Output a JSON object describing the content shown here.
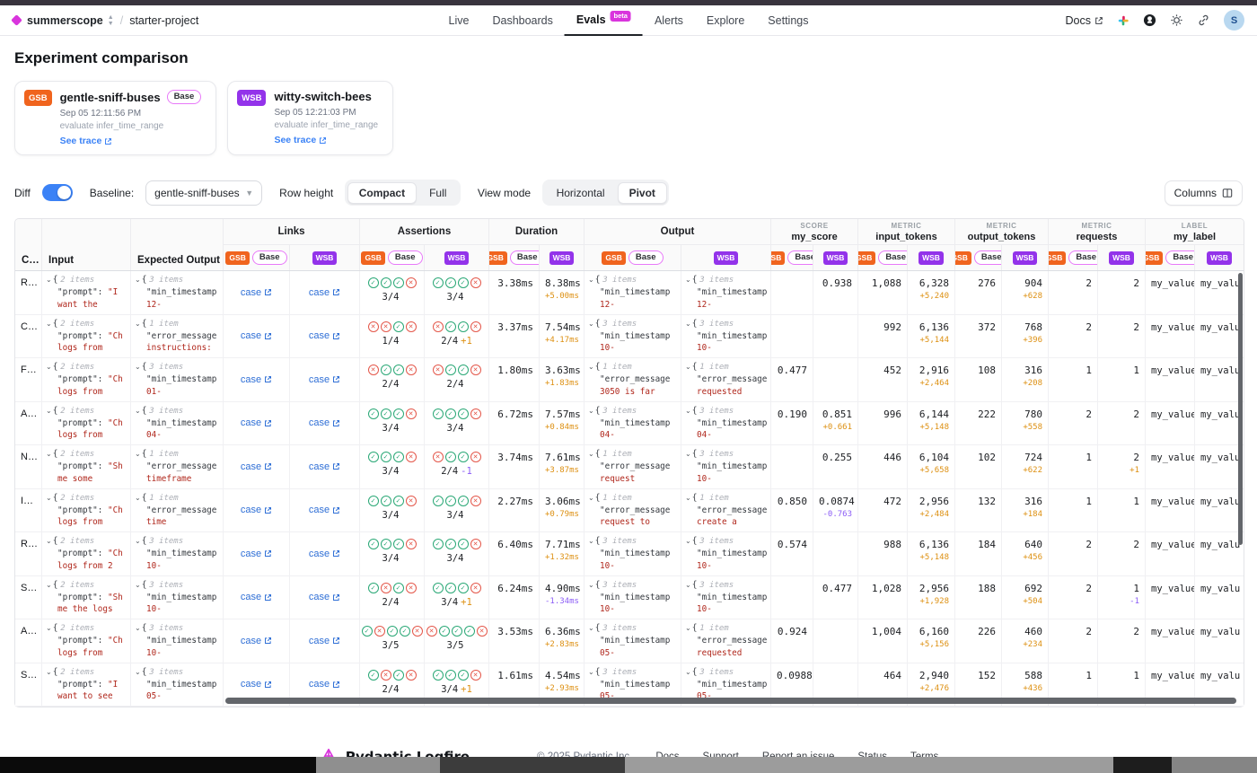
{
  "header": {
    "org": "summerscope",
    "project": "starter-project",
    "tabs": [
      {
        "label": "Live"
      },
      {
        "label": "Dashboards"
      },
      {
        "label": "Evals",
        "badge": "beta"
      },
      {
        "label": "Alerts"
      },
      {
        "label": "Explore"
      },
      {
        "label": "Settings"
      }
    ],
    "docs_label": "Docs",
    "avatar_initial": "S"
  },
  "page": {
    "title": "Experiment comparison"
  },
  "experiments": [
    {
      "abbr": "GSB",
      "name": "gentle-sniff-buses",
      "base_label": "Base",
      "timestamp": "Sep 05 12:11:56 PM",
      "task": "evaluate infer_time_range",
      "trace_label": "See trace"
    },
    {
      "abbr": "WSB",
      "name": "witty-switch-bees",
      "timestamp": "Sep 05 12:21:03 PM",
      "task": "evaluate infer_time_range",
      "trace_label": "See trace"
    }
  ],
  "controls": {
    "diff_label": "Diff",
    "baseline_label": "Baseline:",
    "baseline_value": "gentle-sniff-buses",
    "row_height_label": "Row height",
    "row_height_options": [
      "Compact",
      "Full"
    ],
    "row_height_selected": "Compact",
    "view_mode_label": "View mode",
    "view_mode_options": [
      "Horizontal",
      "Pivot"
    ],
    "view_mode_selected": "Pivot",
    "columns_label": "Columns"
  },
  "table": {
    "badges": {
      "gsb": "GSB",
      "wsb": "WSB",
      "base": "Base"
    },
    "headers": {
      "case": "C…",
      "input": "Input",
      "expected": "Expected Output",
      "links": "Links",
      "assertions": "Assertions",
      "duration": "Duration",
      "output": "Output",
      "score_kind": "SCORE",
      "score_name": "my_score",
      "metric_kind": "METRIC",
      "input_tokens": "input_tokens",
      "output_tokens": "output_tokens",
      "requests": "requests",
      "label_kind": "LABEL",
      "label_name": "my_label"
    },
    "link_label": "case",
    "rows": [
      {
        "c": "R…",
        "in": {
          "s": "2 items",
          "k": "\"prompt\":",
          "v1": "\"I",
          "v2": "want the"
        },
        "ex": {
          "s": "3 items",
          "k": "\"min_timestamp",
          "v2": "12-"
        },
        "ag": {
          "icons": [
            "c",
            "c",
            "c",
            "x"
          ],
          "ratio": "3/4",
          "diff": "",
          "dc": ""
        },
        "aw": {
          "icons": [
            "c",
            "c",
            "c",
            "x"
          ],
          "ratio": "3/4",
          "diff": "",
          "dc": ""
        },
        "du": {
          "g": "3.38ms",
          "w": "8.38ms",
          "d": "+5.00ms",
          "dc": "pos"
        },
        "og": {
          "s": "3 items",
          "k": "\"min_timestamp",
          "v2": "12-"
        },
        "ow": {
          "s": "3 items",
          "k": "\"min_timestamp",
          "v2": "12-"
        },
        "sc": {
          "g": "",
          "w": "0.938",
          "d": "",
          "dc": ""
        },
        "it": {
          "g": "1,088",
          "w": "6,328",
          "d": "+5,240",
          "dc": "pos"
        },
        "ot": {
          "g": "276",
          "w": "904",
          "d": "+628",
          "dc": "pos"
        },
        "rq": {
          "g": "2",
          "w": "2",
          "d": "",
          "dc": ""
        },
        "lb": {
          "g": "my_value_",
          "w": "my_valu"
        }
      },
      {
        "c": "C…",
        "in": {
          "s": "2 items",
          "k": "\"prompt\":",
          "v1": "\"Ch",
          "v2": "logs from"
        },
        "ex": {
          "s": "1 item",
          "k": "\"error_message",
          "v2": "instructions:"
        },
        "ag": {
          "icons": [
            "x",
            "x",
            "c",
            "x"
          ],
          "ratio": "1/4",
          "diff": "",
          "dc": ""
        },
        "aw": {
          "icons": [
            "x",
            "c",
            "c",
            "x"
          ],
          "ratio": "2/4",
          "diff": "+1",
          "dc": "pos"
        },
        "du": {
          "g": "3.37ms",
          "w": "7.54ms",
          "d": "+4.17ms",
          "dc": "pos"
        },
        "og": {
          "s": "3 items",
          "k": "\"min_timestamp",
          "v2": "10-"
        },
        "ow": {
          "s": "3 items",
          "k": "\"min_timestamp",
          "v2": "10-"
        },
        "sc": {
          "g": "",
          "w": "",
          "d": "",
          "dc": ""
        },
        "it": {
          "g": "992",
          "w": "6,136",
          "d": "+5,144",
          "dc": "pos"
        },
        "ot": {
          "g": "372",
          "w": "768",
          "d": "+396",
          "dc": "pos"
        },
        "rq": {
          "g": "2",
          "w": "2",
          "d": "",
          "dc": ""
        },
        "lb": {
          "g": "my_value_",
          "w": "my_valu"
        }
      },
      {
        "c": "F…",
        "in": {
          "s": "2 items",
          "k": "\"prompt\":",
          "v1": "\"Ch",
          "v2": "logs from"
        },
        "ex": {
          "s": "3 items",
          "k": "\"min_timestamp",
          "v2": "01-"
        },
        "ag": {
          "icons": [
            "x",
            "c",
            "c",
            "x"
          ],
          "ratio": "2/4",
          "diff": "",
          "dc": ""
        },
        "aw": {
          "icons": [
            "x",
            "c",
            "c",
            "x"
          ],
          "ratio": "2/4",
          "diff": "",
          "dc": ""
        },
        "du": {
          "g": "1.80ms",
          "w": "3.63ms",
          "d": "+1.83ms",
          "dc": "pos"
        },
        "og": {
          "s": "1 item",
          "k": "\"error_message",
          "v2": "3050 is far"
        },
        "ow": {
          "s": "1 item",
          "k": "\"error_message",
          "v2": "requested"
        },
        "sc": {
          "g": "0.477",
          "w": "",
          "d": "",
          "dc": ""
        },
        "it": {
          "g": "452",
          "w": "2,916",
          "d": "+2,464",
          "dc": "pos"
        },
        "ot": {
          "g": "108",
          "w": "316",
          "d": "+208",
          "dc": "pos"
        },
        "rq": {
          "g": "1",
          "w": "1",
          "d": "",
          "dc": ""
        },
        "lb": {
          "g": "my_value_",
          "w": "my_valu"
        }
      },
      {
        "c": "A…",
        "in": {
          "s": "2 items",
          "k": "\"prompt\":",
          "v1": "\"Ch",
          "v2": "logs from"
        },
        "ex": {
          "s": "3 items",
          "k": "\"min_timestamp",
          "v2": "04-"
        },
        "ag": {
          "icons": [
            "c",
            "c",
            "c",
            "x"
          ],
          "ratio": "3/4",
          "diff": "",
          "dc": ""
        },
        "aw": {
          "icons": [
            "c",
            "c",
            "c",
            "x"
          ],
          "ratio": "3/4",
          "diff": "",
          "dc": ""
        },
        "du": {
          "g": "6.72ms",
          "w": "7.57ms",
          "d": "+0.84ms",
          "dc": "pos"
        },
        "og": {
          "s": "3 items",
          "k": "\"min_timestamp",
          "v2": "04-"
        },
        "ow": {
          "s": "3 items",
          "k": "\"min_timestamp",
          "v2": "04-"
        },
        "sc": {
          "g": "0.190",
          "w": "0.851",
          "d": "+0.661",
          "dc": "pos"
        },
        "it": {
          "g": "996",
          "w": "6,144",
          "d": "+5,148",
          "dc": "pos"
        },
        "ot": {
          "g": "222",
          "w": "780",
          "d": "+558",
          "dc": "pos"
        },
        "rq": {
          "g": "2",
          "w": "2",
          "d": "",
          "dc": ""
        },
        "lb": {
          "g": "my_value_",
          "w": "my_valu"
        }
      },
      {
        "c": "N…",
        "in": {
          "s": "2 items",
          "k": "\"prompt\":",
          "v1": "\"Sh",
          "v2": "me some"
        },
        "ex": {
          "s": "1 item",
          "k": "\"error_message",
          "v2": "timeframe"
        },
        "ag": {
          "icons": [
            "c",
            "c",
            "c",
            "x"
          ],
          "ratio": "3/4",
          "diff": "",
          "dc": ""
        },
        "aw": {
          "icons": [
            "x",
            "c",
            "c",
            "x"
          ],
          "ratio": "2/4",
          "diff": "-1",
          "dc": "neg"
        },
        "du": {
          "g": "3.74ms",
          "w": "7.61ms",
          "d": "+3.87ms",
          "dc": "pos"
        },
        "og": {
          "s": "1 item",
          "k": "\"error_message",
          "v2": "request"
        },
        "ow": {
          "s": "3 items",
          "k": "\"min_timestamp",
          "v2": "10-"
        },
        "sc": {
          "g": "",
          "w": "0.255",
          "d": "",
          "dc": ""
        },
        "it": {
          "g": "446",
          "w": "6,104",
          "d": "+5,658",
          "dc": "pos"
        },
        "ot": {
          "g": "102",
          "w": "724",
          "d": "+622",
          "dc": "pos"
        },
        "rq": {
          "g": "1",
          "w": "2",
          "d": "+1",
          "dc": "pos"
        },
        "lb": {
          "g": "my_value_",
          "w": "my_valu"
        }
      },
      {
        "c": "I…",
        "in": {
          "s": "2 items",
          "k": "\"prompt\":",
          "v1": "\"Ch",
          "v2": "logs from"
        },
        "ex": {
          "s": "1 item",
          "k": "\"error_message",
          "v2": "time"
        },
        "ag": {
          "icons": [
            "c",
            "c",
            "c",
            "x"
          ],
          "ratio": "3/4",
          "diff": "",
          "dc": ""
        },
        "aw": {
          "icons": [
            "c",
            "c",
            "c",
            "x"
          ],
          "ratio": "3/4",
          "diff": "",
          "dc": ""
        },
        "du": {
          "g": "2.27ms",
          "w": "3.06ms",
          "d": "+0.79ms",
          "dc": "pos"
        },
        "og": {
          "s": "1 item",
          "k": "\"error_message",
          "v2": "request to"
        },
        "ow": {
          "s": "1 item",
          "k": "\"error_message",
          "v2": "create a"
        },
        "sc": {
          "g": "0.850",
          "w": "0.0874",
          "d": "-0.763",
          "dc": "neg"
        },
        "it": {
          "g": "472",
          "w": "2,956",
          "d": "+2,484",
          "dc": "pos"
        },
        "ot": {
          "g": "132",
          "w": "316",
          "d": "+184",
          "dc": "pos"
        },
        "rq": {
          "g": "1",
          "w": "1",
          "d": "",
          "dc": ""
        },
        "lb": {
          "g": "my_value_",
          "w": "my_valu"
        }
      },
      {
        "c": "R…",
        "in": {
          "s": "2 items",
          "k": "\"prompt\":",
          "v1": "\"Ch",
          "v2": "logs from 2"
        },
        "ex": {
          "s": "3 items",
          "k": "\"min_timestamp",
          "v2": "10-"
        },
        "ag": {
          "icons": [
            "c",
            "c",
            "c",
            "x"
          ],
          "ratio": "3/4",
          "diff": "",
          "dc": ""
        },
        "aw": {
          "icons": [
            "c",
            "c",
            "c",
            "x"
          ],
          "ratio": "3/4",
          "diff": "",
          "dc": ""
        },
        "du": {
          "g": "6.40ms",
          "w": "7.71ms",
          "d": "+1.32ms",
          "dc": "pos"
        },
        "og": {
          "s": "3 items",
          "k": "\"min_timestamp",
          "v2": "10-"
        },
        "ow": {
          "s": "3 items",
          "k": "\"min_timestamp",
          "v2": "10-"
        },
        "sc": {
          "g": "0.574",
          "w": "",
          "d": "",
          "dc": ""
        },
        "it": {
          "g": "988",
          "w": "6,136",
          "d": "+5,148",
          "dc": "pos"
        },
        "ot": {
          "g": "184",
          "w": "640",
          "d": "+456",
          "dc": "pos"
        },
        "rq": {
          "g": "2",
          "w": "2",
          "d": "",
          "dc": ""
        },
        "lb": {
          "g": "my_value_",
          "w": "my_valu"
        }
      },
      {
        "c": "S…",
        "in": {
          "s": "2 items",
          "k": "\"prompt\":",
          "v1": "\"Sh",
          "v2": "me the logs"
        },
        "ex": {
          "s": "3 items",
          "k": "\"min_timestamp",
          "v2": "10-"
        },
        "ag": {
          "icons": [
            "c",
            "x",
            "c",
            "x"
          ],
          "ratio": "2/4",
          "diff": "",
          "dc": ""
        },
        "aw": {
          "icons": [
            "c",
            "c",
            "c",
            "x"
          ],
          "ratio": "3/4",
          "diff": "+1",
          "dc": "pos"
        },
        "du": {
          "g": "6.24ms",
          "w": "4.90ms",
          "d": "-1.34ms",
          "dc": "neg"
        },
        "og": {
          "s": "3 items",
          "k": "\"min_timestamp",
          "v2": "10-"
        },
        "ow": {
          "s": "3 items",
          "k": "\"min_timestamp",
          "v2": "10-"
        },
        "sc": {
          "g": "",
          "w": "0.477",
          "d": "",
          "dc": ""
        },
        "it": {
          "g": "1,028",
          "w": "2,956",
          "d": "+1,928",
          "dc": "pos"
        },
        "ot": {
          "g": "188",
          "w": "692",
          "d": "+504",
          "dc": "pos"
        },
        "rq": {
          "g": "2",
          "w": "1",
          "d": "-1",
          "dc": "neg"
        },
        "lb": {
          "g": "my_value_",
          "w": "my_valu"
        }
      },
      {
        "c": "A…",
        "in": {
          "s": "2 items",
          "k": "\"prompt\":",
          "v1": "\"Ch",
          "v2": "logs from"
        },
        "ex": {
          "s": "3 items",
          "k": "\"min_timestamp",
          "v2": "10-"
        },
        "ag": {
          "icons": [
            "c",
            "x",
            "c",
            "c",
            "x"
          ],
          "ratio": "3/5",
          "diff": "",
          "dc": ""
        },
        "aw": {
          "icons": [
            "x",
            "c",
            "c",
            "c",
            "x"
          ],
          "ratio": "3/5",
          "diff": "",
          "dc": ""
        },
        "du": {
          "g": "3.53ms",
          "w": "6.36ms",
          "d": "+2.83ms",
          "dc": "pos"
        },
        "og": {
          "s": "3 items",
          "k": "\"min_timestamp",
          "v2": "05-"
        },
        "ow": {
          "s": "1 item",
          "k": "\"error_message",
          "v2": "requested"
        },
        "sc": {
          "g": "0.924",
          "w": "",
          "d": "",
          "dc": ""
        },
        "it": {
          "g": "1,004",
          "w": "6,160",
          "d": "+5,156",
          "dc": "pos"
        },
        "ot": {
          "g": "226",
          "w": "460",
          "d": "+234",
          "dc": "pos"
        },
        "rq": {
          "g": "2",
          "w": "2",
          "d": "",
          "dc": ""
        },
        "lb": {
          "g": "my_value_",
          "w": "my_valu"
        }
      },
      {
        "c": "S…",
        "in": {
          "s": "2 items",
          "k": "\"prompt\":",
          "v1": "\"I",
          "v2": "want to see"
        },
        "ex": {
          "s": "3 items",
          "k": "\"min_timestamp",
          "v2": "05-"
        },
        "ag": {
          "icons": [
            "c",
            "x",
            "c",
            "x"
          ],
          "ratio": "2/4",
          "diff": "",
          "dc": ""
        },
        "aw": {
          "icons": [
            "c",
            "c",
            "c",
            "x"
          ],
          "ratio": "3/4",
          "diff": "+1",
          "dc": "pos"
        },
        "du": {
          "g": "1.61ms",
          "w": "4.54ms",
          "d": "+2.93ms",
          "dc": "pos"
        },
        "og": {
          "s": "3 items",
          "k": "\"min_timestamp",
          "v2": "05-"
        },
        "ow": {
          "s": "3 items",
          "k": "\"min_timestamp",
          "v2": "05-"
        },
        "sc": {
          "g": "0.0988",
          "w": "",
          "d": "",
          "dc": ""
        },
        "it": {
          "g": "464",
          "w": "2,940",
          "d": "+2,476",
          "dc": "pos"
        },
        "ot": {
          "g": "152",
          "w": "588",
          "d": "+436",
          "dc": "pos"
        },
        "rq": {
          "g": "1",
          "w": "1",
          "d": "",
          "dc": ""
        },
        "lb": {
          "g": "my_value_",
          "w": "my_valu"
        }
      }
    ]
  },
  "footer": {
    "brand": "Pydantic Logfire",
    "links": [
      "© 2025 Pydantic Inc.",
      "Docs",
      "Support",
      "Report an issue",
      "Status",
      "Terms"
    ]
  },
  "colors": {
    "gsb_badge": "#f0641e",
    "wsb_badge": "#9333ea",
    "base_pill_outline": "#e879f9",
    "beta_badge": "#d935dd",
    "link_blue": "#2f6fd6",
    "diff_positive": "#dd9012",
    "diff_negative": "#8b5cf6",
    "json_value_red": "#b0271c",
    "check_green": "#2aa876",
    "cross_red": "#e4574a",
    "toggle_on_blue": "#3b82f6"
  }
}
